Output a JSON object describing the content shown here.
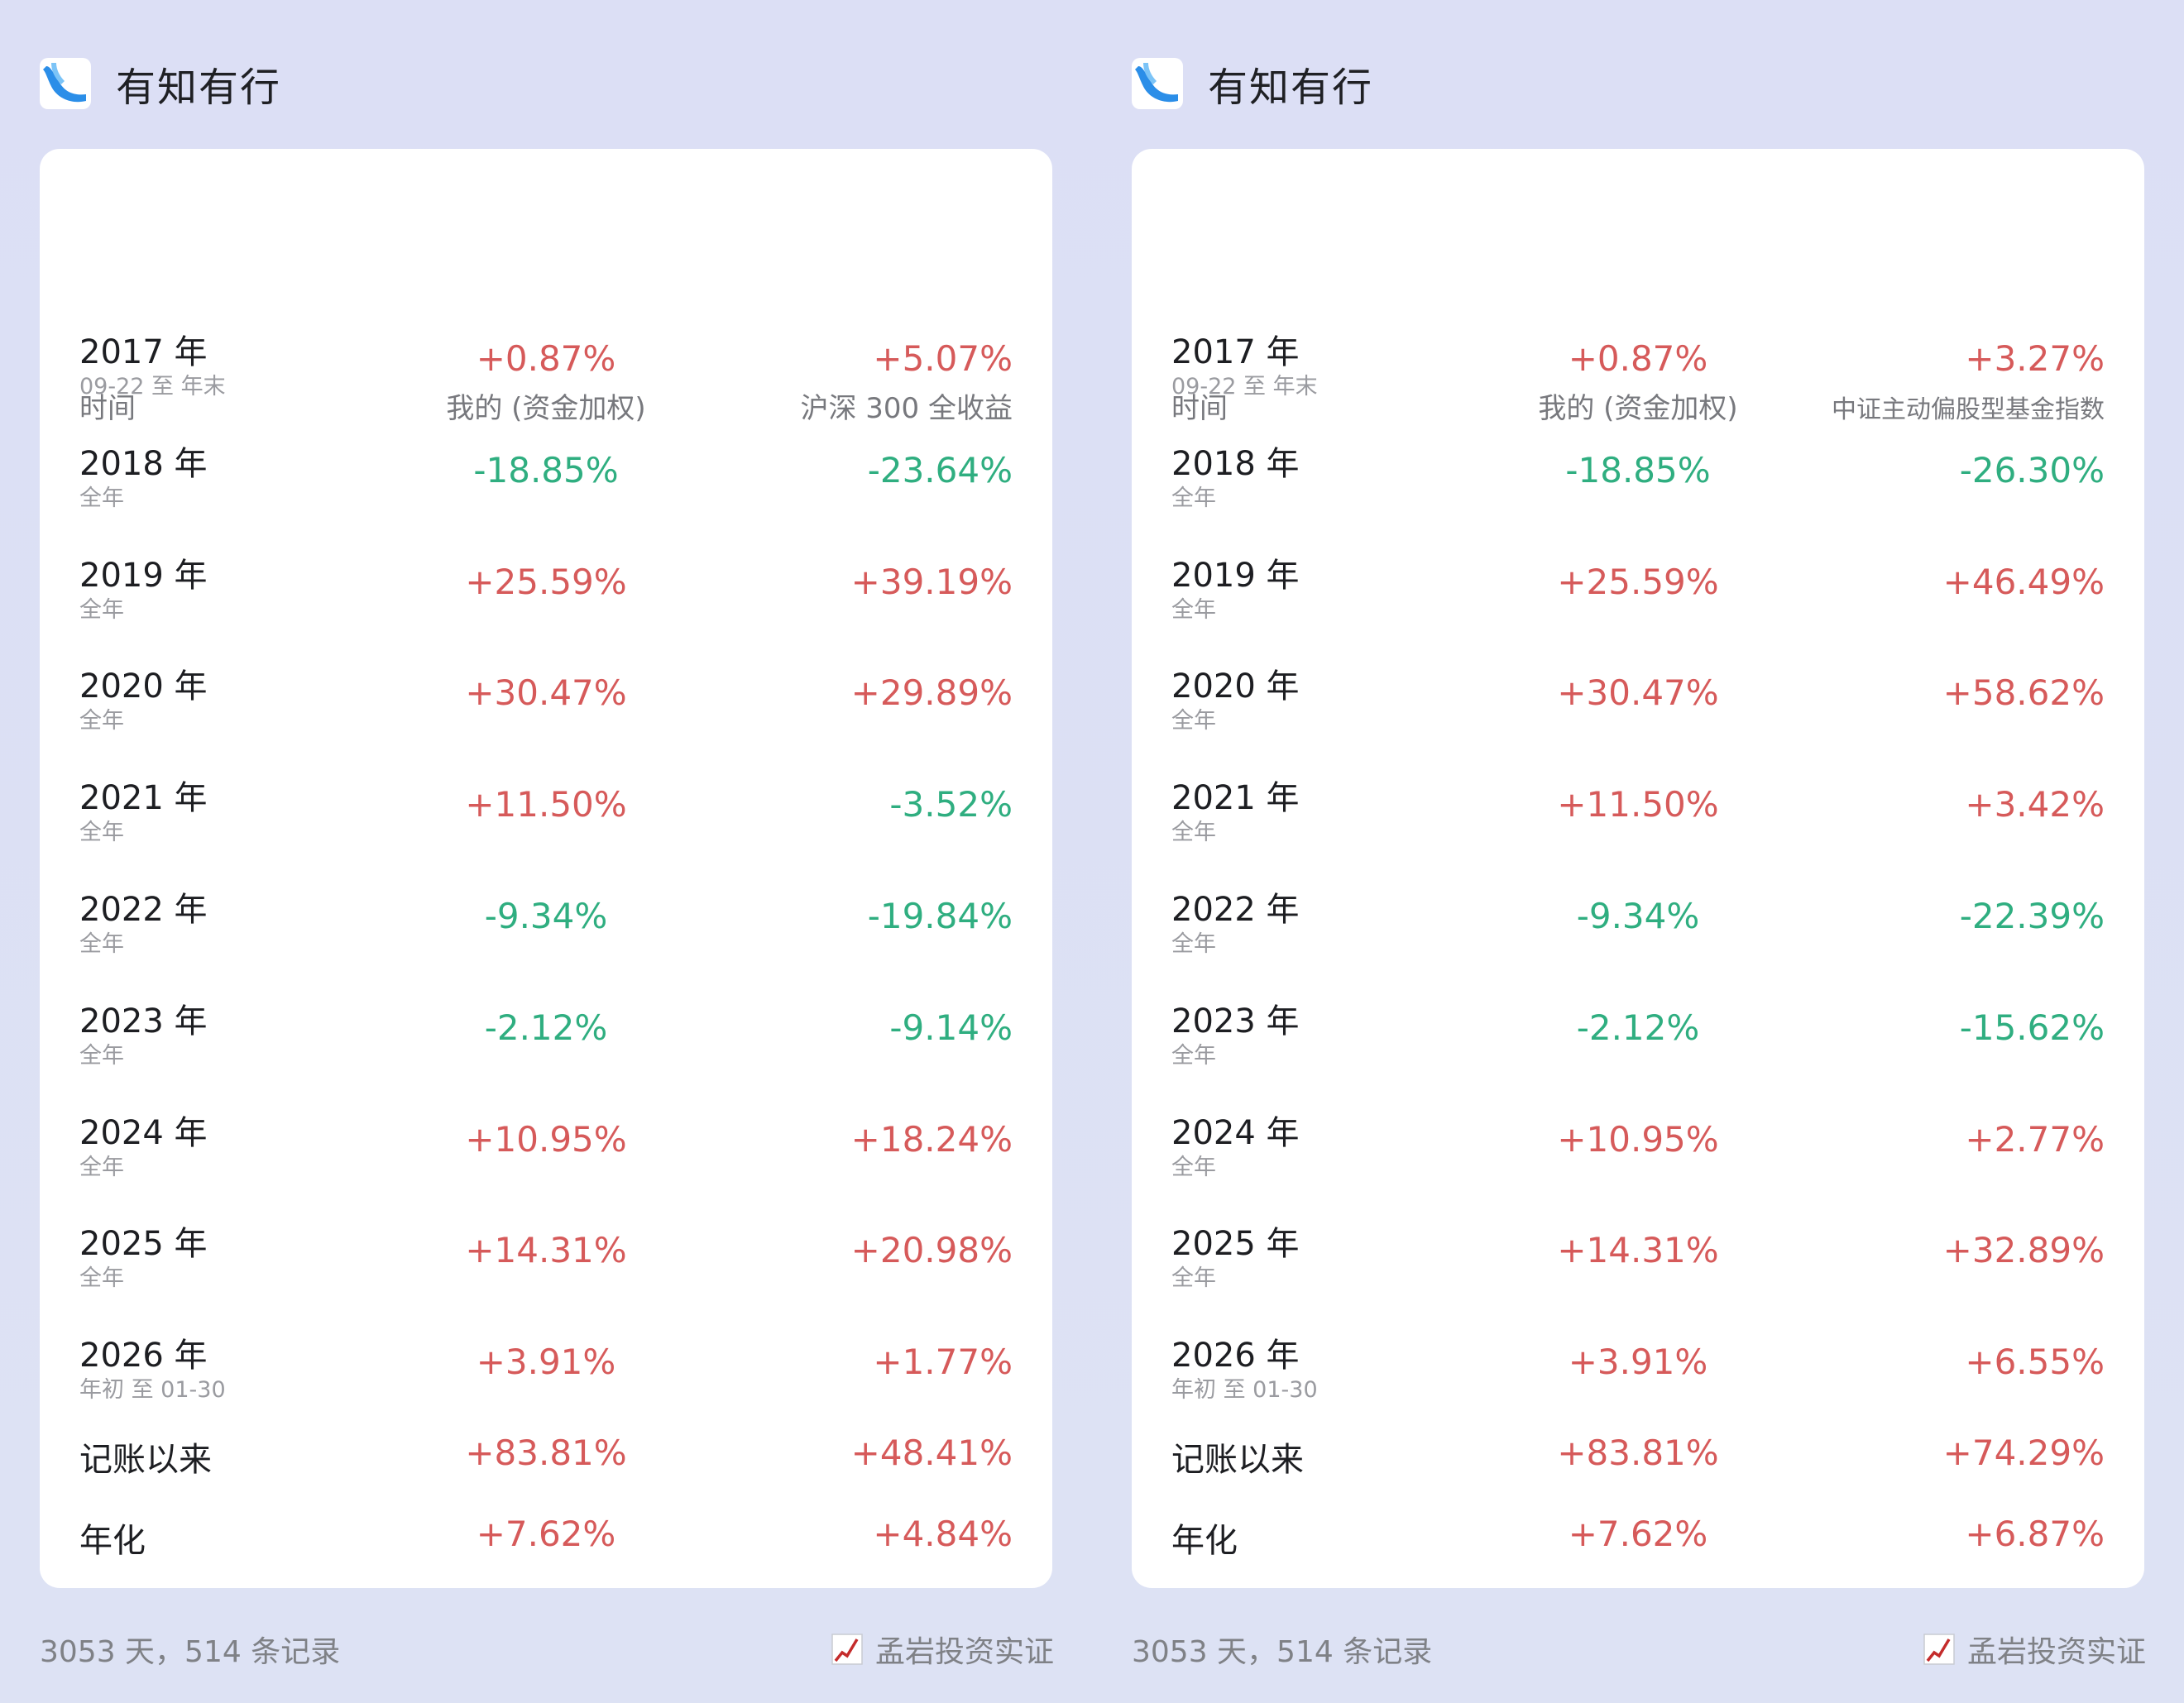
{
  "colors": {
    "positive": "#d65a5a",
    "negative": "#2fae80",
    "logo_blue": "#2b8ee8"
  },
  "panels": [
    {
      "brand": {
        "name": "有知有行",
        "logo_icon": "app-logo-wave"
      },
      "headers": {
        "time": "时间",
        "mine": "我的 (资金加权)",
        "bench": "沪深 300 全收益"
      },
      "rows": [
        {
          "year": "2017 年",
          "sub": "09-22 至 年末",
          "mine": "+0.87%",
          "bench": "+5.07%"
        },
        {
          "year": "2018 年",
          "sub": "全年",
          "mine": "-18.85%",
          "bench": "-23.64%"
        },
        {
          "year": "2019 年",
          "sub": "全年",
          "mine": "+25.59%",
          "bench": "+39.19%"
        },
        {
          "year": "2020 年",
          "sub": "全年",
          "mine": "+30.47%",
          "bench": "+29.89%"
        },
        {
          "year": "2021 年",
          "sub": "全年",
          "mine": "+11.50%",
          "bench": "-3.52%"
        },
        {
          "year": "2022 年",
          "sub": "全年",
          "mine": "-9.34%",
          "bench": "-19.84%"
        },
        {
          "year": "2023 年",
          "sub": "全年",
          "mine": "-2.12%",
          "bench": "-9.14%"
        },
        {
          "year": "2024 年",
          "sub": "全年",
          "mine": "+10.95%",
          "bench": "+18.24%"
        },
        {
          "year": "2025 年",
          "sub": "全年",
          "mine": "+14.31%",
          "bench": "+20.98%"
        },
        {
          "year": "2026 年",
          "sub": "年初 至 01-30",
          "mine": "+3.91%",
          "bench": "+1.77%"
        }
      ],
      "summary": [
        {
          "label": "记账以来",
          "mine": "+83.81%",
          "bench": "+48.41%"
        },
        {
          "label": "年化",
          "mine": "+7.62%",
          "bench": "+4.84%"
        }
      ],
      "footer": {
        "stats": "3053 天，514 条记录",
        "author": "孟岩投资实证",
        "author_icon": "chart-trend-icon"
      }
    },
    {
      "brand": {
        "name": "有知有行",
        "logo_icon": "app-logo-wave"
      },
      "headers": {
        "time": "时间",
        "mine": "我的 (资金加权)",
        "bench": "中证主动偏股型基金指数"
      },
      "rows": [
        {
          "year": "2017 年",
          "sub": "09-22 至 年末",
          "mine": "+0.87%",
          "bench": "+3.27%"
        },
        {
          "year": "2018 年",
          "sub": "全年",
          "mine": "-18.85%",
          "bench": "-26.30%"
        },
        {
          "year": "2019 年",
          "sub": "全年",
          "mine": "+25.59%",
          "bench": "+46.49%"
        },
        {
          "year": "2020 年",
          "sub": "全年",
          "mine": "+30.47%",
          "bench": "+58.62%"
        },
        {
          "year": "2021 年",
          "sub": "全年",
          "mine": "+11.50%",
          "bench": "+3.42%"
        },
        {
          "year": "2022 年",
          "sub": "全年",
          "mine": "-9.34%",
          "bench": "-22.39%"
        },
        {
          "year": "2023 年",
          "sub": "全年",
          "mine": "-2.12%",
          "bench": "-15.62%"
        },
        {
          "year": "2024 年",
          "sub": "全年",
          "mine": "+10.95%",
          "bench": "+2.77%"
        },
        {
          "year": "2025 年",
          "sub": "全年",
          "mine": "+14.31%",
          "bench": "+32.89%"
        },
        {
          "year": "2026 年",
          "sub": "年初 至 01-30",
          "mine": "+3.91%",
          "bench": "+6.55%"
        }
      ],
      "summary": [
        {
          "label": "记账以来",
          "mine": "+83.81%",
          "bench": "+74.29%"
        },
        {
          "label": "年化",
          "mine": "+7.62%",
          "bench": "+6.87%"
        }
      ],
      "footer": {
        "stats": "3053 天，514 条记录",
        "author": "孟岩投资实证",
        "author_icon": "chart-trend-icon"
      }
    }
  ]
}
